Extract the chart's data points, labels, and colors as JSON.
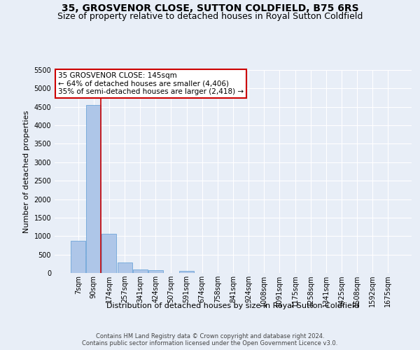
{
  "title": "35, GROSVENOR CLOSE, SUTTON COLDFIELD, B75 6RS",
  "subtitle": "Size of property relative to detached houses in Royal Sutton Coldfield",
  "xlabel": "Distribution of detached houses by size in Royal Sutton Coldfield",
  "ylabel": "Number of detached properties",
  "footer_line1": "Contains HM Land Registry data © Crown copyright and database right 2024.",
  "footer_line2": "Contains public sector information licensed under the Open Government Licence v3.0.",
  "annotation_title": "35 GROSVENOR CLOSE: 145sqm",
  "annotation_line1": "← 64% of detached houses are smaller (4,406)",
  "annotation_line2": "35% of semi-detached houses are larger (2,418) →",
  "bar_labels": [
    "7sqm",
    "90sqm",
    "174sqm",
    "257sqm",
    "341sqm",
    "424sqm",
    "507sqm",
    "591sqm",
    "674sqm",
    "758sqm",
    "841sqm",
    "924sqm",
    "1008sqm",
    "1091sqm",
    "1175sqm",
    "1258sqm",
    "1341sqm",
    "1425sqm",
    "1508sqm",
    "1592sqm",
    "1675sqm"
  ],
  "bar_values": [
    880,
    4560,
    1060,
    285,
    100,
    75,
    0,
    55,
    0,
    0,
    0,
    0,
    0,
    0,
    0,
    0,
    0,
    0,
    0,
    0,
    0
  ],
  "bar_color": "#aec6e8",
  "bar_edge_color": "#5b9bd5",
  "vline_color": "#cc0000",
  "ylim": [
    0,
    5500
  ],
  "yticks": [
    0,
    500,
    1000,
    1500,
    2000,
    2500,
    3000,
    3500,
    4000,
    4500,
    5000,
    5500
  ],
  "bg_color": "#e8eef7",
  "plot_bg_color": "#e8eef7",
  "grid_color": "#ffffff",
  "title_fontsize": 10,
  "subtitle_fontsize": 9,
  "xlabel_fontsize": 8,
  "ylabel_fontsize": 8,
  "annotation_box_color": "#ffffff",
  "annotation_box_edge": "#cc0000",
  "annotation_fontsize": 7.5,
  "tick_fontsize": 7,
  "footer_fontsize": 6
}
